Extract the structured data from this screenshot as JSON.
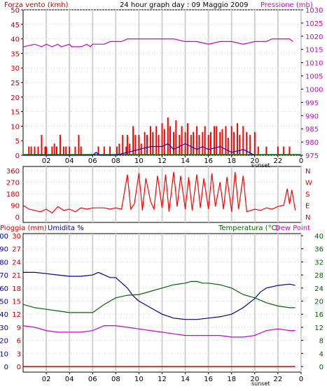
{
  "chart_data": [
    {
      "type": "bar",
      "title": "24 hour graph day : 09 Maggio 2009",
      "left_label": "Forza vento (kmh)",
      "right_label": "Pressione (mb)",
      "x_ticks": [
        "02",
        "04",
        "06",
        "08",
        "10",
        "12",
        "14",
        "16",
        "18",
        "20",
        "22",
        "0"
      ],
      "sunset_label": "sunset",
      "ylim_left": [
        0,
        50
      ],
      "y_ticks_left": [
        0,
        5,
        10,
        15,
        20,
        25,
        30,
        35,
        40,
        45,
        50
      ],
      "ylim_right": [
        975,
        1030
      ],
      "y_ticks_right": [
        975,
        980,
        985,
        990,
        995,
        1000,
        1005,
        1010,
        1015,
        1020,
        1025,
        1030
      ],
      "colors": {
        "gust": "#ff0000",
        "speed": "#0000cc",
        "pressure": "#cc00cc",
        "zero": "#008000",
        "left_axis": "#cc0000",
        "right_axis": "#cc00cc"
      },
      "series": [
        {
          "name": "Pressione",
          "axis": "right",
          "color": "#cc00cc",
          "x": [
            0,
            1,
            1.6,
            2,
            2.5,
            3,
            3.3,
            4,
            4.2,
            5,
            5.5,
            5.8,
            6,
            6.5,
            7,
            7.5,
            8,
            8.5,
            9,
            9.5,
            10,
            11,
            12,
            12.5,
            13,
            14,
            15,
            16,
            17,
            18,
            19,
            20,
            20.5,
            21,
            21.5,
            22,
            22.5,
            23,
            23.3
          ],
          "y": [
            1016,
            1017,
            1016,
            1017,
            1016,
            1017,
            1016,
            1017,
            1016,
            1016,
            1017,
            1016,
            1017,
            1017,
            1017,
            1018,
            1018,
            1018,
            1019,
            1019,
            1019,
            1019,
            1019,
            1019,
            1019,
            1018,
            1018,
            1017,
            1018,
            1018,
            1017,
            1018,
            1018,
            1018,
            1019,
            1019,
            1019,
            1019,
            1018
          ]
        },
        {
          "name": "Velocità",
          "axis": "left",
          "color": "#0000cc",
          "x": [
            0,
            6,
            6.3,
            6.6,
            8,
            9,
            10,
            11,
            12,
            12.5,
            13,
            14,
            15,
            15.5,
            16,
            17,
            18,
            19,
            19.5,
            20
          ],
          "y": [
            0,
            0,
            1,
            0,
            0,
            1,
            2,
            3,
            3,
            4,
            2,
            4,
            2,
            3,
            2,
            3,
            1,
            2,
            1,
            0
          ]
        }
      ],
      "gust_x": [
        0.5,
        0.7,
        1.0,
        1.3,
        1.6,
        1.9,
        2.0,
        2.5,
        2.7,
        2.9,
        3.2,
        3.5,
        3.7,
        4.0,
        4.5,
        4.8,
        5.0,
        6.5,
        7.0,
        7.5,
        8.1,
        8.3,
        8.6,
        8.9,
        9.0,
        9.2,
        9.5,
        9.7,
        10.0,
        10.2,
        10.5,
        10.7,
        11.0,
        11.2,
        11.5,
        11.7,
        12.0,
        12.2,
        12.5,
        12.7,
        13.0,
        13.2,
        13.5,
        13.7,
        14.0,
        14.2,
        14.5,
        14.7,
        15.0,
        15.2,
        15.5,
        15.7,
        16.0,
        16.2,
        16.5,
        16.7,
        17.0,
        17.2,
        17.5,
        17.7,
        18.0,
        18.2,
        18.5,
        18.7,
        19.0,
        19.3,
        19.6,
        20.0,
        20.3,
        21.0,
        22.0,
        22.5,
        23.0
      ],
      "gust_y": [
        3,
        3,
        3,
        3,
        7,
        3,
        3,
        3,
        4,
        3,
        7,
        3,
        3,
        3,
        3,
        7,
        3,
        3,
        3,
        3,
        3,
        4,
        7,
        3,
        7,
        4,
        10,
        7,
        7,
        4,
        8,
        7,
        10,
        8,
        10,
        7,
        11,
        9,
        13,
        10,
        8,
        12,
        7,
        10,
        8,
        11,
        7,
        8,
        10,
        7,
        8,
        10,
        7,
        8,
        10,
        10,
        8,
        9,
        10,
        6,
        10,
        8,
        11,
        7,
        10,
        8,
        7,
        8,
        3,
        3,
        3,
        3,
        3
      ]
    },
    {
      "type": "line",
      "right_labels": [
        "N",
        "W",
        "S",
        "E",
        "N"
      ],
      "ylim": [
        0,
        360
      ],
      "y_ticks": [
        0,
        90,
        180,
        270,
        360
      ],
      "x_ticks": [
        "02",
        "04",
        "06",
        "08",
        "10",
        "12",
        "14",
        "16",
        "18",
        "20",
        "22",
        "0"
      ],
      "colors": {
        "dir": "#ff0000",
        "left_axis": "#cc0000",
        "right_axis": "#cc0000"
      },
      "series": [
        {
          "name": "Direzione vento",
          "color": "#ff0000",
          "x": [
            0,
            0.5,
            1,
            1.5,
            2,
            2.5,
            3,
            3.5,
            4,
            4.5,
            5,
            5.5,
            6,
            6.5,
            7,
            7.5,
            8,
            8.5,
            9,
            9.3,
            9.6,
            10,
            10.3,
            10.6,
            11,
            11.3,
            11.6,
            12,
            12.3,
            12.6,
            13,
            13.3,
            13.6,
            14,
            14.3,
            14.6,
            15,
            15.3,
            15.6,
            16,
            16.3,
            16.6,
            17,
            17.3,
            17.6,
            18,
            18.3,
            18.6,
            19,
            19.3,
            20,
            20.5,
            21,
            21.5,
            22,
            22.5,
            22.8,
            23,
            23.2,
            23.5
          ],
          "y": [
            90,
            60,
            50,
            40,
            60,
            30,
            80,
            50,
            60,
            40,
            70,
            60,
            70,
            70,
            70,
            60,
            70,
            60,
            330,
            60,
            100,
            340,
            50,
            300,
            120,
            60,
            320,
            70,
            330,
            40,
            350,
            80,
            320,
            60,
            310,
            50,
            330,
            70,
            300,
            60,
            340,
            80,
            270,
            60,
            310,
            40,
            350,
            60,
            320,
            40,
            60,
            50,
            70,
            60,
            80,
            90,
            220,
            100,
            210,
            50
          ]
        }
      ]
    },
    {
      "type": "line",
      "left_label_1": "Pioggia (mm)",
      "left_label_2": "Umidita %",
      "right_label_1": "Temperatura (°C)",
      "right_label_2": "Dew Point",
      "x_ticks": [
        "02",
        "04",
        "06",
        "08",
        "10",
        "12",
        "14",
        "16",
        "18",
        "20",
        "22",
        "0"
      ],
      "sunset_label": "sunset",
      "ylim_rain": [
        0,
        30
      ],
      "y_ticks_rain": [
        0,
        3,
        6,
        9,
        12,
        15,
        18,
        21,
        24,
        27,
        30
      ],
      "ylim_hum": [
        0,
        100
      ],
      "y_ticks_hum": [
        0,
        10,
        20,
        30,
        40,
        50,
        60,
        70,
        80,
        90,
        100
      ],
      "ylim_temp": [
        0,
        40
      ],
      "y_ticks_temp": [
        0,
        4,
        8,
        12,
        16,
        20,
        24,
        28,
        32,
        36,
        40
      ],
      "colors": {
        "rain": "#cc0000",
        "humidity": "#000099",
        "temperature": "#006600",
        "dewpoint": "#cc00cc",
        "rain_axis": "#cc0000",
        "hum_axis": "#000099",
        "temp_axis": "#006600"
      },
      "series": [
        {
          "name": "Umidita",
          "axis": "hum",
          "color": "#000099",
          "x": [
            0,
            1,
            2,
            3,
            4,
            5,
            6,
            6.5,
            7,
            7.5,
            8,
            8.5,
            9,
            9.5,
            10,
            11,
            12,
            13,
            14,
            15,
            16,
            17,
            18,
            19,
            20,
            20.5,
            21,
            22,
            23,
            23.5
          ],
          "y": [
            72,
            72,
            71,
            70,
            69,
            69,
            70,
            72,
            70,
            68,
            68,
            64,
            60,
            54,
            50,
            45,
            40,
            37,
            36,
            36,
            37,
            38,
            40,
            45,
            52,
            57,
            60,
            62,
            63,
            62
          ]
        },
        {
          "name": "Temperatura",
          "axis": "temp",
          "color": "#006600",
          "x": [
            0,
            1,
            2,
            3,
            4,
            5,
            6,
            7,
            8,
            9,
            10,
            11,
            12,
            13,
            14,
            14.5,
            15,
            15.5,
            16,
            17,
            18,
            19,
            20,
            21,
            22,
            23,
            23.5
          ],
          "y": [
            19,
            18,
            17.5,
            17,
            16.5,
            16.5,
            16.5,
            19,
            21,
            21.8,
            22,
            23,
            24,
            25,
            25.5,
            26,
            26,
            25.5,
            25.5,
            25,
            24,
            22,
            21,
            19.5,
            18.5,
            18,
            18
          ]
        },
        {
          "name": "Dew Point",
          "axis": "temp",
          "color": "#cc00cc",
          "x": [
            0,
            1,
            2,
            3,
            4,
            5,
            6,
            7,
            8,
            9,
            10,
            11,
            12,
            13,
            14,
            15,
            16,
            17,
            18,
            19,
            20,
            21,
            22,
            23,
            23.5
          ],
          "y": [
            12.5,
            12,
            11,
            10.5,
            10.5,
            10.5,
            11,
            12.5,
            12.5,
            12,
            11.5,
            11,
            10.5,
            10,
            9.5,
            9.5,
            9.5,
            9.5,
            9,
            9,
            9.5,
            11,
            11.5,
            11,
            11
          ]
        },
        {
          "name": "Pioggia",
          "axis": "rain",
          "color": "#cc0000",
          "x": [
            0,
            23.5
          ],
          "y": [
            0,
            0
          ]
        }
      ]
    }
  ]
}
